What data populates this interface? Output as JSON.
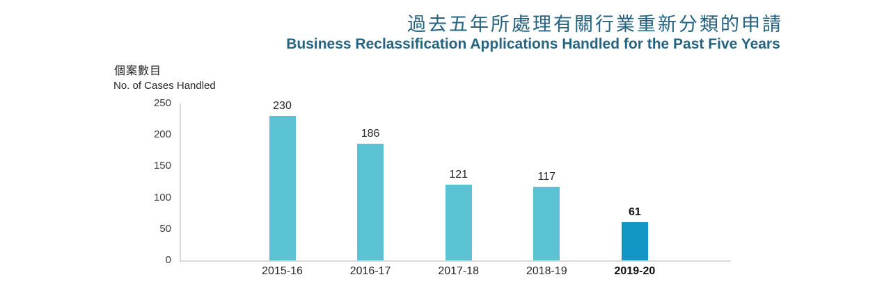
{
  "header": {
    "title_zh": "過去五年所處理有關行業重新分類的申請",
    "title_en": "Business Reclassification Applications Handled for the Past Five Years"
  },
  "y_axis": {
    "label_zh": "個案數目",
    "label_en": "No. of Cases Handled",
    "ticks": [
      250,
      200,
      150,
      100,
      50,
      0
    ]
  },
  "chart_data": {
    "type": "bar",
    "title": "過去五年所處理有關行業重新分類的申請",
    "subtitle": "Business Reclassification Applications Handled for the Past Five Years",
    "ylabel": "個案數目 / No. of Cases Handled",
    "xlabel": "",
    "categories": [
      "2015-16",
      "2016-17",
      "2017-18",
      "2018-19",
      "2019-20"
    ],
    "values": [
      230,
      186,
      121,
      117,
      61
    ],
    "data_labels_shown": true,
    "ylim": [
      0,
      250
    ],
    "ytick_interval": 50,
    "grid": false,
    "legend": "none",
    "highlight_category": "2019-20",
    "highlight_index": 4
  },
  "colors": {
    "title": "#266380",
    "bar": "#5bc2d3",
    "highlight_bar": "#1095c5",
    "axis_line": "#d9d9d9",
    "label_text": "#262626"
  }
}
